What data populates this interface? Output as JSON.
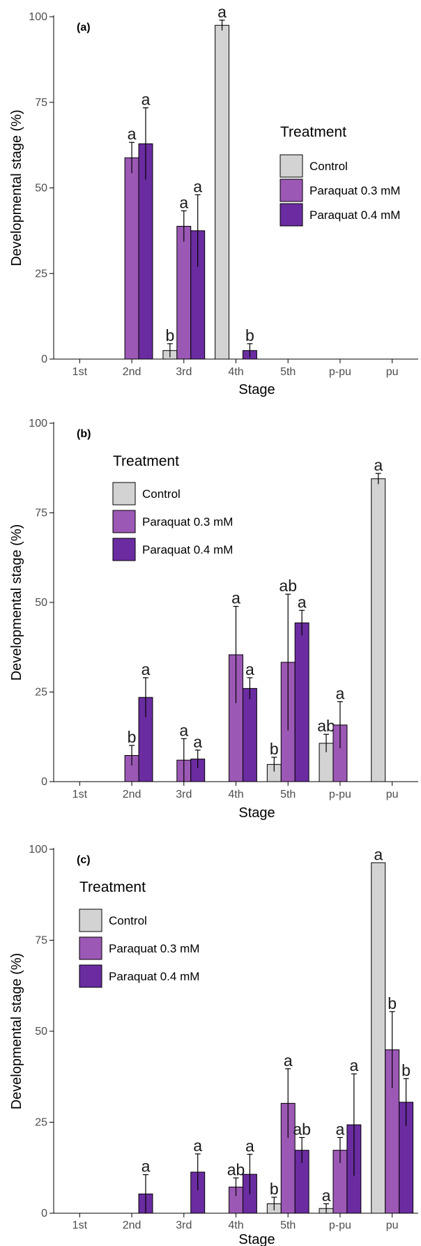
{
  "colors": {
    "Control": "#d3d3d3",
    "Paraquat 0.3 mM": "#9b58b5",
    "Paraquat 0.4 mM": "#6a2ca0"
  },
  "chart_data": [
    {
      "type": "bar",
      "panel_label": "(a)",
      "xlabel": "Stage",
      "ylabel": "Developmental stage (%)",
      "ylim": [
        0,
        100
      ],
      "yticks": [
        "0",
        "25",
        "50",
        "75",
        "100"
      ],
      "categories": [
        "1st",
        "2nd",
        "3rd",
        "4th",
        "5th",
        "p-pu",
        "pu"
      ],
      "legend": {
        "title": "Treatment",
        "placement": "right",
        "entries": [
          "Control",
          "Paraquat 0.3 mM",
          "Paraquat 0.4 mM"
        ]
      },
      "series": [
        {
          "name": "Control",
          "values": [
            0,
            0,
            2.5,
            97.5,
            0,
            0,
            0
          ],
          "err": [
            0,
            0,
            2.0,
            1.5,
            0,
            0,
            0
          ],
          "labels": [
            "",
            "",
            "b",
            "a",
            "",
            "",
            ""
          ]
        },
        {
          "name": "Paraquat 0.3 mM",
          "values": [
            0,
            58.8,
            38.8,
            0,
            0,
            0,
            0
          ],
          "err": [
            0,
            4.5,
            4.5,
            0,
            0,
            0,
            0
          ],
          "labels": [
            "",
            "a",
            "a",
            "",
            "",
            "",
            ""
          ]
        },
        {
          "name": "Paraquat 0.4 mM",
          "values": [
            0,
            62.9,
            37.5,
            2.5,
            0,
            0,
            0
          ],
          "err": [
            0,
            10.5,
            10.5,
            2.0,
            0,
            0,
            0
          ],
          "labels": [
            "",
            "a",
            "a",
            "b",
            "",
            "",
            ""
          ]
        }
      ]
    },
    {
      "type": "bar",
      "panel_label": "(b)",
      "xlabel": "Stage",
      "ylabel": "Developmental stage (%)",
      "ylim": [
        0,
        100
      ],
      "yticks": [
        "0",
        "25",
        "50",
        "75",
        "100"
      ],
      "categories": [
        "1st",
        "2nd",
        "3rd",
        "4th",
        "5th",
        "p-pu",
        "pu"
      ],
      "legend": {
        "title": "Treatment",
        "placement": "top-left",
        "entries": [
          "Control",
          "Paraquat 0.3 mM",
          "Paraquat 0.4 mM"
        ]
      },
      "series": [
        {
          "name": "Control",
          "values": [
            0,
            0,
            0,
            0,
            4.8,
            10.7,
            84.5
          ],
          "err": [
            0,
            0,
            0,
            0,
            2.0,
            2.5,
            1.5
          ],
          "labels": [
            "",
            "",
            "",
            "",
            "b",
            "ab",
            "a"
          ]
        },
        {
          "name": "Paraquat 0.3 mM",
          "values": [
            0,
            7.3,
            6.0,
            35.4,
            33.3,
            15.8,
            0
          ],
          "err": [
            0,
            2.8,
            6.0,
            13.5,
            19.0,
            6.5,
            0
          ],
          "labels": [
            "",
            "b",
            "a",
            "a",
            "ab",
            "a",
            ""
          ]
        },
        {
          "name": "Paraquat 0.4 mM",
          "values": [
            0,
            23.5,
            6.3,
            26.0,
            44.3,
            0,
            0
          ],
          "err": [
            0,
            5.5,
            2.5,
            3.0,
            3.5,
            0,
            0
          ],
          "labels": [
            "",
            "a",
            "a",
            "a",
            "a",
            "",
            ""
          ]
        }
      ]
    },
    {
      "type": "bar",
      "panel_label": "(c)",
      "xlabel": "Stage",
      "ylabel": "Developmental stage (%)",
      "ylim": [
        0,
        100
      ],
      "yticks": [
        "0",
        "25",
        "50",
        "75",
        "100"
      ],
      "categories": [
        "1st",
        "2nd",
        "3rd",
        "4th",
        "5th",
        "p-pu",
        "pu"
      ],
      "legend": {
        "title": "Treatment",
        "placement": "left",
        "entries": [
          "Control",
          "Paraquat 0.3 mM",
          "Paraquat 0.4 mM"
        ]
      },
      "series": [
        {
          "name": "Control",
          "values": [
            0,
            0,
            0,
            0,
            2.6,
            1.3,
            96.3
          ],
          "err": [
            0,
            0,
            0,
            0,
            1.8,
            1.3,
            0
          ],
          "labels": [
            "",
            "",
            "",
            "",
            "b",
            "a",
            "a"
          ]
        },
        {
          "name": "Paraquat 0.3 mM",
          "values": [
            0,
            0,
            0,
            7.2,
            30.2,
            17.3,
            44.9
          ],
          "err": [
            0,
            0,
            0,
            2.5,
            9.5,
            3.5,
            10.5
          ],
          "labels": [
            "",
            "",
            "",
            "ab",
            "a",
            "a",
            "b"
          ]
        },
        {
          "name": "Paraquat 0.4 mM",
          "values": [
            0,
            5.3,
            11.3,
            10.7,
            17.3,
            24.3,
            30.5
          ],
          "err": [
            0,
            5.3,
            5.0,
            5.5,
            3.5,
            14.0,
            6.5
          ],
          "labels": [
            "",
            "a",
            "a",
            "a",
            "ab",
            "a",
            "b"
          ]
        }
      ]
    }
  ]
}
